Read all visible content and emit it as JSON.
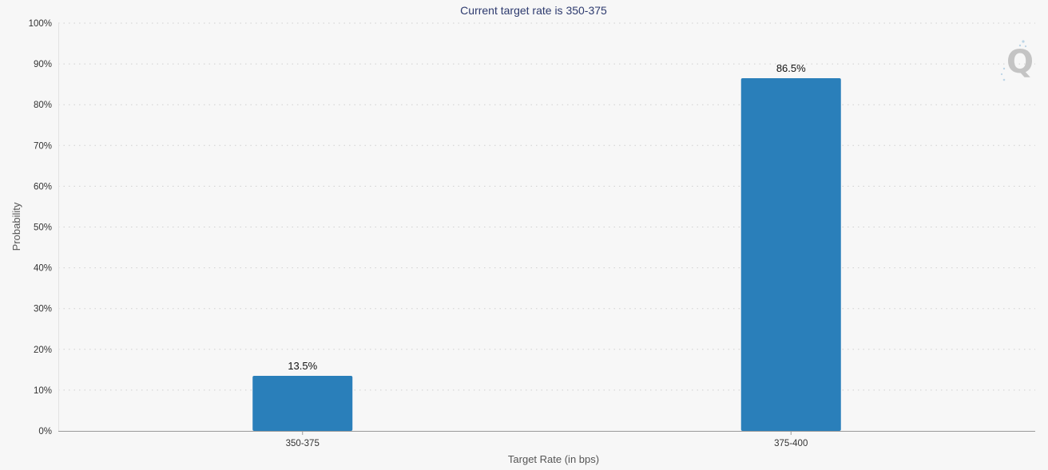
{
  "chart_data": {
    "type": "bar",
    "title": "Current target rate is 350-375",
    "xlabel": "Target Rate (in bps)",
    "ylabel": "Probability",
    "categories": [
      "350-375",
      "375-400"
    ],
    "values": [
      13.5,
      86.5
    ],
    "data_labels": [
      "13.5%",
      "86.5%"
    ],
    "y_ticks": [
      "0%",
      "10%",
      "20%",
      "30%",
      "40%",
      "50%",
      "60%",
      "70%",
      "80%",
      "90%",
      "100%"
    ],
    "ylim": [
      0,
      100
    ],
    "grid": true,
    "legend": "none",
    "bar_color": "#2a7fba"
  },
  "logo": {
    "icon": "q-logo-icon",
    "letter": "Q"
  }
}
